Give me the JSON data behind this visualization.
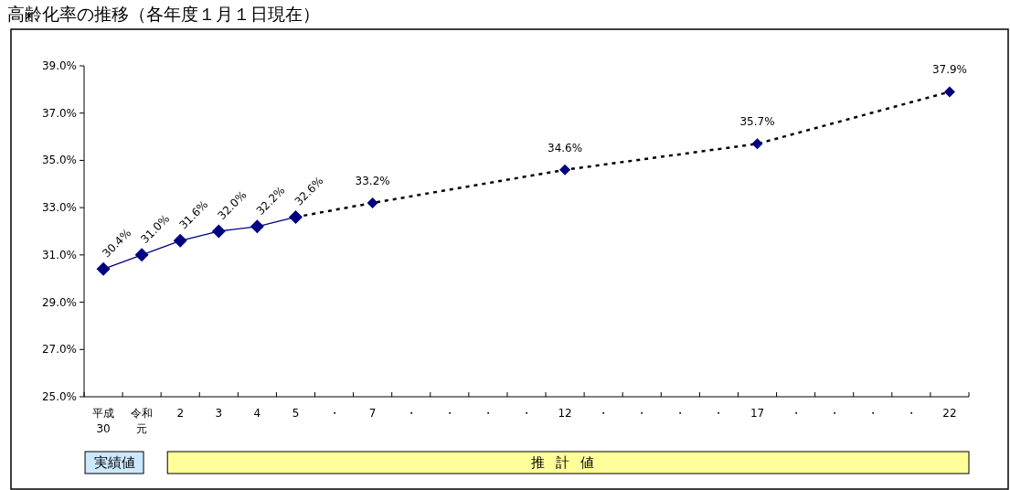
{
  "chart_data": {
    "type": "line",
    "title": "高齢化率の推移（各年度１月１日現在）",
    "categories": [
      "平成30",
      "令和元",
      "2",
      "3",
      "4",
      "5",
      "・",
      "7",
      "・",
      "・",
      "・",
      "・",
      "12",
      "・",
      "・",
      "・",
      "・",
      "17",
      "・",
      "・",
      "・",
      "・",
      "22"
    ],
    "series": [
      {
        "type": "line",
        "color": "#000080",
        "line_style": "solid",
        "marker": "diamond",
        "values": [
          30.4,
          31.0,
          31.6,
          32.0,
          32.2,
          32.6,
          null,
          null,
          null,
          null,
          null,
          null,
          null,
          null,
          null,
          null,
          null,
          null,
          null,
          null,
          null,
          null,
          null
        ],
        "value_labels": [
          "30.4%",
          "31.0%",
          "31.6%",
          "32.0%",
          "32.2%",
          "32.6%",
          null,
          null,
          null,
          null,
          null,
          null,
          null,
          null,
          null,
          null,
          null,
          null,
          null,
          null,
          null,
          null,
          null
        ]
      },
      {
        "type": "line",
        "color": "#000000",
        "line_style": "dotted",
        "marker": "diamond",
        "values": [
          null,
          null,
          null,
          null,
          null,
          32.6,
          null,
          33.2,
          null,
          null,
          null,
          null,
          34.6,
          null,
          null,
          null,
          null,
          35.7,
          null,
          null,
          null,
          null,
          37.9
        ],
        "value_labels": [
          null,
          null,
          null,
          null,
          null,
          null,
          null,
          "33.2%",
          null,
          null,
          null,
          null,
          "34.6%",
          null,
          null,
          null,
          null,
          "35.7%",
          null,
          null,
          null,
          null,
          "37.9%"
        ]
      }
    ],
    "ylim": [
      25,
      39
    ],
    "yticks": [
      {
        "value": 25,
        "label": "25.0%"
      },
      {
        "value": 27,
        "label": "27.0%"
      },
      {
        "value": 29,
        "label": "29.0%"
      },
      {
        "value": 31,
        "label": "31.0%"
      },
      {
        "value": 33,
        "label": "33.0%"
      },
      {
        "value": 35,
        "label": "35.0%"
      },
      {
        "value": 37,
        "label": "37.0%"
      },
      {
        "value": 39,
        "label": "39.0%"
      }
    ],
    "grid": false,
    "annotations": [
      "実績値",
      "推計値"
    ]
  }
}
